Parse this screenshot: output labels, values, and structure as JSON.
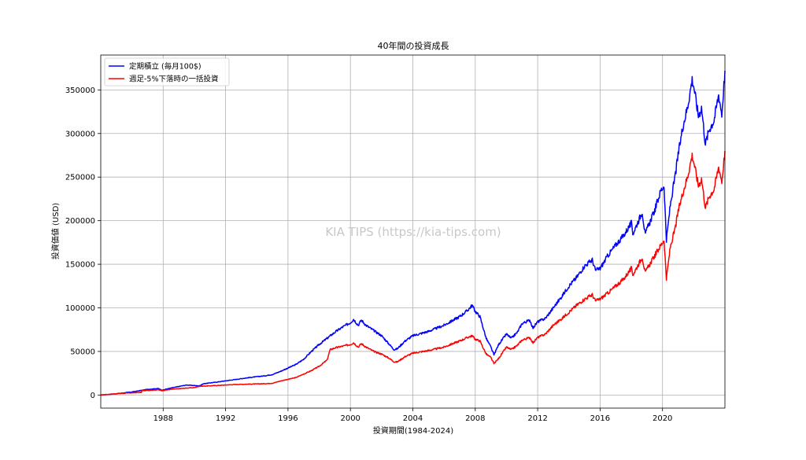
{
  "chart_data": {
    "type": "line",
    "title": "40年間の投資成長",
    "xlabel": "投資期間(1984-2024)",
    "ylabel": "投資価値 (USD)",
    "watermark": "KIA TIPS (https://kia-tips.com)",
    "xlim": [
      1984.0,
      2024.0
    ],
    "ylim": [
      -15000,
      390000
    ],
    "x_ticks": [
      1988,
      1992,
      1996,
      2000,
      2004,
      2008,
      2012,
      2016,
      2020
    ],
    "y_ticks": [
      0,
      50000,
      100000,
      150000,
      200000,
      250000,
      300000,
      350000
    ],
    "grid": true,
    "legend_position": "upper-left",
    "series": [
      {
        "name": "定期積立 (毎月100$)",
        "color": "#0000ff",
        "points": [
          [
            1984.0,
            0
          ],
          [
            1985.0,
            1500
          ],
          [
            1986.0,
            3500
          ],
          [
            1987.0,
            6500
          ],
          [
            1987.7,
            7500
          ],
          [
            1987.9,
            5500
          ],
          [
            1988.5,
            8000
          ],
          [
            1989.5,
            11500
          ],
          [
            1990.3,
            10500
          ],
          [
            1990.6,
            13000
          ],
          [
            1991.5,
            15000
          ],
          [
            1992.5,
            17500
          ],
          [
            1993.5,
            20000
          ],
          [
            1994.5,
            22000
          ],
          [
            1995.0,
            23500
          ],
          [
            1995.5,
            27000
          ],
          [
            1996.0,
            31000
          ],
          [
            1996.5,
            35000
          ],
          [
            1997.0,
            41000
          ],
          [
            1997.5,
            50000
          ],
          [
            1998.0,
            58000
          ],
          [
            1998.5,
            65000
          ],
          [
            1999.0,
            72000
          ],
          [
            1999.5,
            78000
          ],
          [
            2000.0,
            83000
          ],
          [
            2000.2,
            87000
          ],
          [
            2000.5,
            80000
          ],
          [
            2000.7,
            86000
          ],
          [
            2001.0,
            80000
          ],
          [
            2001.5,
            74000
          ],
          [
            2002.0,
            68000
          ],
          [
            2002.5,
            58000
          ],
          [
            2002.8,
            52000
          ],
          [
            2003.0,
            53000
          ],
          [
            2003.5,
            62000
          ],
          [
            2004.0,
            68000
          ],
          [
            2005.0,
            73000
          ],
          [
            2006.0,
            80000
          ],
          [
            2007.0,
            90000
          ],
          [
            2007.5,
            97000
          ],
          [
            2007.8,
            103000
          ],
          [
            2008.0,
            96000
          ],
          [
            2008.3,
            90000
          ],
          [
            2008.7,
            65000
          ],
          [
            2009.0,
            55000
          ],
          [
            2009.2,
            46000
          ],
          [
            2009.5,
            58000
          ],
          [
            2010.0,
            70000
          ],
          [
            2010.3,
            65000
          ],
          [
            2010.7,
            72000
          ],
          [
            2011.0,
            82000
          ],
          [
            2011.5,
            86000
          ],
          [
            2011.7,
            77000
          ],
          [
            2012.0,
            84000
          ],
          [
            2012.5,
            88000
          ],
          [
            2013.0,
            100000
          ],
          [
            2013.5,
            112000
          ],
          [
            2014.0,
            125000
          ],
          [
            2014.5,
            135000
          ],
          [
            2015.0,
            148000
          ],
          [
            2015.5,
            155000
          ],
          [
            2015.7,
            143000
          ],
          [
            2016.0,
            145000
          ],
          [
            2016.5,
            160000
          ],
          [
            2017.0,
            172000
          ],
          [
            2017.5,
            183000
          ],
          [
            2018.0,
            197000
          ],
          [
            2018.1,
            185000
          ],
          [
            2018.7,
            210000
          ],
          [
            2018.9,
            183000
          ],
          [
            2019.0,
            190000
          ],
          [
            2019.5,
            212000
          ],
          [
            2019.9,
            235000
          ],
          [
            2020.1,
            240000
          ],
          [
            2020.25,
            177000
          ],
          [
            2020.5,
            218000
          ],
          [
            2020.8,
            250000
          ],
          [
            2021.0,
            275000
          ],
          [
            2021.3,
            308000
          ],
          [
            2021.6,
            330000
          ],
          [
            2021.9,
            362000
          ],
          [
            2022.0,
            355000
          ],
          [
            2022.3,
            320000
          ],
          [
            2022.5,
            330000
          ],
          [
            2022.75,
            288000
          ],
          [
            2023.0,
            305000
          ],
          [
            2023.3,
            315000
          ],
          [
            2023.6,
            345000
          ],
          [
            2023.8,
            322000
          ],
          [
            2024.0,
            372000
          ]
        ]
      },
      {
        "name": "週足-5%下落時の一括投資",
        "color": "#ff0000",
        "points": [
          [
            1984.0,
            0
          ],
          [
            1985.0,
            1500
          ],
          [
            1986.0,
            2500
          ],
          [
            1986.6,
            3000
          ],
          [
            1986.65,
            5000
          ],
          [
            1987.7,
            6000
          ],
          [
            1987.9,
            5000
          ],
          [
            1988.5,
            6500
          ],
          [
            1989.5,
            8000
          ],
          [
            1990.0,
            8500
          ],
          [
            1990.3,
            10000
          ],
          [
            1991.5,
            11000
          ],
          [
            1992.5,
            12000
          ],
          [
            1993.5,
            12500
          ],
          [
            1994.5,
            13000
          ],
          [
            1995.0,
            13500
          ],
          [
            1995.5,
            16000
          ],
          [
            1996.0,
            18000
          ],
          [
            1996.5,
            20000
          ],
          [
            1997.0,
            24000
          ],
          [
            1997.5,
            28000
          ],
          [
            1998.0,
            33000
          ],
          [
            1998.5,
            40000
          ],
          [
            1998.7,
            52000
          ],
          [
            1999.0,
            54000
          ],
          [
            1999.5,
            56000
          ],
          [
            2000.0,
            58000
          ],
          [
            2000.2,
            60000
          ],
          [
            2000.5,
            55000
          ],
          [
            2000.7,
            59000
          ],
          [
            2001.0,
            55000
          ],
          [
            2001.5,
            50000
          ],
          [
            2002.0,
            47000
          ],
          [
            2002.5,
            42000
          ],
          [
            2002.8,
            38000
          ],
          [
            2003.0,
            38000
          ],
          [
            2003.5,
            44000
          ],
          [
            2004.0,
            48000
          ],
          [
            2005.0,
            51000
          ],
          [
            2006.0,
            55000
          ],
          [
            2007.0,
            62000
          ],
          [
            2007.5,
            66000
          ],
          [
            2007.8,
            68000
          ],
          [
            2008.0,
            64000
          ],
          [
            2008.3,
            62000
          ],
          [
            2008.7,
            47000
          ],
          [
            2009.0,
            43000
          ],
          [
            2009.2,
            36000
          ],
          [
            2009.5,
            42000
          ],
          [
            2010.0,
            55000
          ],
          [
            2010.3,
            52000
          ],
          [
            2010.7,
            57000
          ],
          [
            2011.0,
            63000
          ],
          [
            2011.5,
            66000
          ],
          [
            2011.7,
            60000
          ],
          [
            2012.0,
            66000
          ],
          [
            2012.5,
            70000
          ],
          [
            2013.0,
            80000
          ],
          [
            2013.5,
            87000
          ],
          [
            2014.0,
            95000
          ],
          [
            2014.5,
            103000
          ],
          [
            2015.0,
            110000
          ],
          [
            2015.5,
            115000
          ],
          [
            2015.7,
            108000
          ],
          [
            2016.0,
            110000
          ],
          [
            2016.5,
            117000
          ],
          [
            2017.0,
            125000
          ],
          [
            2017.5,
            133000
          ],
          [
            2018.0,
            145000
          ],
          [
            2018.1,
            138000
          ],
          [
            2018.7,
            158000
          ],
          [
            2018.9,
            140000
          ],
          [
            2019.0,
            144000
          ],
          [
            2019.5,
            160000
          ],
          [
            2019.9,
            172000
          ],
          [
            2020.1,
            178000
          ],
          [
            2020.25,
            133000
          ],
          [
            2020.5,
            170000
          ],
          [
            2020.8,
            190000
          ],
          [
            2021.0,
            210000
          ],
          [
            2021.3,
            232000
          ],
          [
            2021.6,
            250000
          ],
          [
            2021.9,
            275000
          ],
          [
            2022.0,
            268000
          ],
          [
            2022.3,
            240000
          ],
          [
            2022.5,
            248000
          ],
          [
            2022.75,
            215000
          ],
          [
            2023.0,
            228000
          ],
          [
            2023.3,
            236000
          ],
          [
            2023.6,
            262000
          ],
          [
            2023.8,
            245000
          ],
          [
            2024.0,
            280000
          ]
        ]
      }
    ]
  }
}
